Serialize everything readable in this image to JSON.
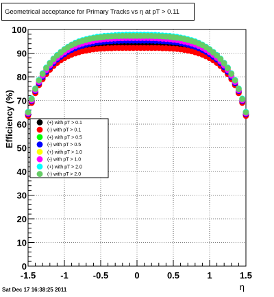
{
  "chart_data": {
    "type": "scatter",
    "title": "Geometrical acceptance for Primary Tracks vs   η at pT > 0.11",
    "xlabel": "η",
    "ylabel": "Efficiency (%)",
    "xlim": [
      -1.5,
      1.5
    ],
    "ylim": [
      0,
      100
    ],
    "x_ticks": [
      "-1.5",
      "-1",
      "-0.5",
      "0",
      "0.5",
      "1",
      "1.5"
    ],
    "y_ticks": [
      "0",
      "10",
      "20",
      "30",
      "40",
      "50",
      "60",
      "70",
      "80",
      "90",
      "100"
    ],
    "grid": true,
    "legend_position": "middle-left",
    "x": [
      -1.5,
      -1.45,
      -1.4,
      -1.35,
      -1.3,
      -1.25,
      -1.2,
      -1.15,
      -1.1,
      -1.05,
      -1.0,
      -0.95,
      -0.9,
      -0.85,
      -0.8,
      -0.75,
      -0.7,
      -0.65,
      -0.6,
      -0.55,
      -0.5,
      -0.45,
      -0.4,
      -0.35,
      -0.3,
      -0.25,
      -0.2,
      -0.15,
      -0.1,
      -0.05,
      0.0,
      0.05,
      0.1,
      0.15,
      0.2,
      0.25,
      0.3,
      0.35,
      0.4,
      0.45,
      0.5,
      0.55,
      0.6,
      0.65,
      0.7,
      0.75,
      0.8,
      0.85,
      0.9,
      0.95,
      1.0,
      1.05,
      1.1,
      1.15,
      1.2,
      1.25,
      1.3,
      1.35,
      1.4,
      1.45,
      1.5
    ],
    "series": [
      {
        "name": "(+) with pT > 0.1",
        "color": "#000000",
        "values": [
          64.0,
          69.5,
          73.6,
          77.0,
          79.5,
          81.7,
          83.5,
          85.1,
          86.5,
          87.6,
          88.5,
          89.4,
          90.1,
          90.8,
          91.3,
          91.7,
          92.1,
          92.4,
          92.7,
          92.9,
          93.1,
          93.2,
          93.3,
          93.4,
          93.5,
          93.5,
          93.6,
          93.6,
          93.6,
          93.6,
          93.6,
          93.6,
          93.6,
          93.6,
          93.6,
          93.5,
          93.5,
          93.4,
          93.3,
          93.2,
          93.1,
          92.9,
          92.7,
          92.4,
          92.1,
          91.7,
          91.3,
          90.8,
          90.1,
          89.4,
          88.5,
          87.6,
          86.5,
          85.1,
          83.5,
          81.7,
          79.5,
          77.0,
          73.6,
          69.5,
          64.0
        ]
      },
      {
        "name": "(-) with pT > 0.1",
        "color": "#ff0000",
        "values": [
          63.5,
          69.0,
          73.1,
          76.5,
          79.0,
          81.2,
          83.0,
          84.6,
          85.9,
          87.0,
          87.9,
          88.7,
          89.4,
          89.9,
          90.4,
          90.8,
          91.1,
          91.4,
          91.6,
          91.8,
          91.9,
          92.0,
          92.1,
          92.1,
          92.2,
          92.2,
          92.2,
          92.2,
          92.2,
          92.2,
          92.2,
          92.2,
          92.2,
          92.2,
          92.2,
          92.2,
          92.2,
          92.1,
          92.1,
          92.0,
          91.9,
          91.8,
          91.6,
          91.4,
          91.1,
          90.8,
          90.4,
          89.9,
          89.4,
          88.7,
          87.9,
          87.0,
          85.9,
          84.6,
          83.0,
          81.2,
          79.0,
          76.5,
          73.1,
          69.0,
          63.5
        ]
      },
      {
        "name": "(+) with pT > 0.5",
        "color": "#00ff00",
        "values": [
          64.5,
          70.0,
          74.2,
          77.6,
          80.2,
          82.5,
          84.4,
          86.1,
          87.6,
          88.8,
          89.9,
          90.9,
          91.7,
          92.5,
          93.1,
          93.6,
          94.0,
          94.4,
          94.7,
          94.9,
          95.1,
          95.3,
          95.4,
          95.5,
          95.6,
          95.7,
          95.7,
          95.8,
          95.8,
          95.8,
          95.8,
          95.8,
          95.8,
          95.8,
          95.7,
          95.7,
          95.6,
          95.5,
          95.4,
          95.3,
          95.1,
          94.9,
          94.7,
          94.4,
          94.0,
          93.6,
          93.1,
          92.5,
          91.7,
          90.9,
          89.9,
          88.8,
          87.6,
          86.1,
          84.4,
          82.5,
          80.2,
          77.6,
          74.2,
          70.0,
          64.5
        ]
      },
      {
        "name": "(-) with pT > 0.5",
        "color": "#0000ff",
        "values": [
          64.3,
          69.8,
          74.0,
          77.4,
          80.0,
          82.2,
          84.1,
          85.8,
          87.3,
          88.5,
          89.6,
          90.6,
          91.4,
          92.1,
          92.7,
          93.2,
          93.6,
          94.0,
          94.3,
          94.5,
          94.7,
          94.9,
          95.0,
          95.1,
          95.2,
          95.2,
          95.3,
          95.3,
          95.3,
          95.3,
          95.3,
          95.3,
          95.3,
          95.3,
          95.3,
          95.2,
          95.2,
          95.1,
          95.0,
          94.9,
          94.7,
          94.5,
          94.3,
          94.0,
          93.6,
          93.2,
          92.7,
          92.1,
          91.4,
          90.6,
          89.6,
          88.5,
          87.3,
          85.8,
          84.1,
          82.2,
          80.0,
          77.4,
          74.0,
          69.8,
          64.3
        ]
      },
      {
        "name": "(+) with pT > 1.0",
        "color": "#ffff00",
        "values": [
          64.8,
          70.3,
          74.5,
          78.0,
          80.7,
          83.0,
          85.0,
          86.7,
          88.2,
          89.5,
          90.6,
          91.6,
          92.5,
          93.3,
          93.9,
          94.4,
          94.8,
          95.2,
          95.5,
          95.8,
          96.0,
          96.2,
          96.3,
          96.4,
          96.5,
          96.6,
          96.6,
          96.7,
          96.7,
          96.7,
          96.7,
          96.7,
          96.7,
          96.7,
          96.6,
          96.6,
          96.5,
          96.4,
          96.3,
          96.2,
          96.0,
          95.8,
          95.5,
          95.2,
          94.8,
          94.4,
          93.9,
          93.3,
          92.5,
          91.6,
          90.6,
          89.5,
          88.2,
          86.7,
          85.0,
          83.0,
          80.7,
          78.0,
          74.5,
          70.3,
          64.8
        ]
      },
      {
        "name": "(-) with pT > 1.0",
        "color": "#ff00ff",
        "values": [
          64.6,
          70.1,
          74.3,
          77.8,
          80.5,
          82.8,
          84.8,
          86.5,
          88.0,
          89.3,
          90.4,
          91.4,
          92.3,
          93.0,
          93.6,
          94.1,
          94.5,
          94.9,
          95.2,
          95.5,
          95.7,
          95.9,
          96.0,
          96.1,
          96.2,
          96.3,
          96.3,
          96.4,
          96.4,
          96.4,
          96.4,
          96.4,
          96.4,
          96.4,
          96.3,
          96.3,
          96.2,
          96.1,
          96.0,
          95.9,
          95.7,
          95.5,
          95.2,
          94.9,
          94.5,
          94.1,
          93.6,
          93.0,
          92.3,
          91.4,
          90.4,
          89.3,
          88.0,
          86.5,
          84.8,
          82.8,
          80.5,
          77.8,
          74.3,
          70.1,
          64.6
        ]
      },
      {
        "name": "(+) with pT > 2.0",
        "color": "#00ffff",
        "values": [
          65.2,
          70.8,
          75.1,
          78.7,
          81.5,
          83.9,
          85.9,
          87.7,
          89.2,
          90.5,
          91.7,
          92.7,
          93.6,
          94.4,
          95.0,
          95.5,
          95.9,
          96.3,
          96.6,
          96.9,
          97.1,
          97.3,
          97.4,
          97.5,
          97.6,
          97.7,
          97.7,
          97.8,
          97.8,
          97.8,
          97.8,
          97.8,
          97.8,
          97.8,
          97.7,
          97.7,
          97.6,
          97.5,
          97.4,
          97.3,
          97.1,
          96.9,
          96.6,
          96.3,
          95.9,
          95.5,
          95.0,
          94.4,
          93.6,
          92.7,
          91.7,
          90.5,
          89.2,
          87.7,
          85.9,
          83.9,
          81.5,
          78.7,
          75.1,
          70.8,
          65.2
        ]
      },
      {
        "name": "(-) with pT > 2.0",
        "color": "#66cc66",
        "values": [
          65.0,
          70.6,
          74.9,
          78.5,
          81.3,
          83.7,
          85.7,
          87.5,
          89.0,
          90.3,
          91.5,
          92.5,
          93.4,
          94.1,
          94.7,
          95.2,
          95.6,
          96.0,
          96.3,
          96.5,
          96.7,
          96.9,
          97.0,
          97.1,
          97.2,
          97.2,
          97.3,
          97.3,
          97.3,
          97.3,
          97.3,
          97.3,
          97.3,
          97.3,
          97.3,
          97.2,
          97.2,
          97.1,
          97.0,
          96.9,
          96.7,
          96.5,
          96.3,
          96.0,
          95.6,
          95.2,
          94.7,
          94.1,
          93.4,
          92.5,
          91.5,
          90.3,
          89.0,
          87.5,
          85.7,
          83.7,
          81.3,
          78.5,
          74.9,
          70.6,
          65.0
        ]
      }
    ]
  },
  "footer": {
    "timestamp": "Sat Dec 17 16:38:25 2011"
  }
}
